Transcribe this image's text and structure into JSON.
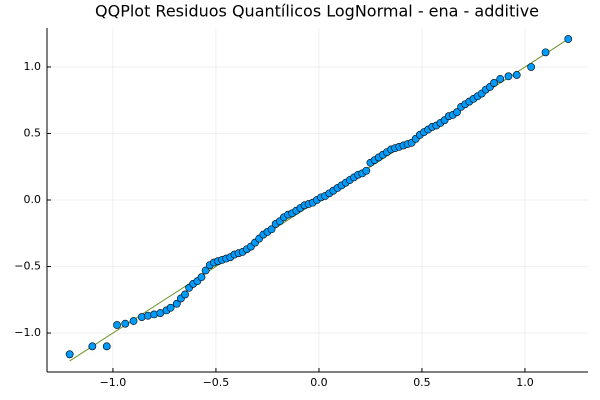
{
  "chart_data": {
    "type": "scatter",
    "title": "QQPlot Residuos Quantílicos LogNormal - ena - additive",
    "xlim": [
      -1.32,
      1.306
    ],
    "ylim": [
      -1.293,
      1.293
    ],
    "xticks": [
      {
        "value": -1.0,
        "label": "−1.0"
      },
      {
        "value": -0.5,
        "label": "−0.5"
      },
      {
        "value": 0.0,
        "label": "0.0"
      },
      {
        "value": 0.5,
        "label": "0.5"
      },
      {
        "value": 1.0,
        "label": "1.0"
      }
    ],
    "yticks": [
      {
        "value": -1.0,
        "label": "−1.0"
      },
      {
        "value": -0.5,
        "label": "−0.5"
      },
      {
        "value": 0.0,
        "label": "0.0"
      },
      {
        "value": 0.5,
        "label": "0.5"
      },
      {
        "value": 1.0,
        "label": "1.0"
      }
    ],
    "grid": true,
    "series": [
      {
        "type": "line",
        "color": "#6b8e23",
        "x": [
          -1.21,
          1.21
        ],
        "y": [
          -1.21,
          1.21
        ]
      },
      {
        "type": "scatter",
        "color": "#009af9",
        "x": [
          -1.21,
          -1.1,
          -1.03,
          -0.98,
          -0.94,
          -0.9,
          -0.86,
          -0.83,
          -0.8,
          -0.77,
          -0.74,
          -0.72,
          -0.69,
          -0.67,
          -0.65,
          -0.63,
          -0.61,
          -0.59,
          -0.57,
          -0.55,
          -0.53,
          -0.51,
          -0.49,
          -0.47,
          -0.45,
          -0.43,
          -0.41,
          -0.39,
          -0.37,
          -0.35,
          -0.33,
          -0.31,
          -0.29,
          -0.27,
          -0.25,
          -0.23,
          -0.21,
          -0.19,
          -0.17,
          -0.15,
          -0.13,
          -0.11,
          -0.09,
          -0.07,
          -0.05,
          -0.03,
          -0.01,
          0.01,
          0.03,
          0.05,
          0.07,
          0.09,
          0.11,
          0.13,
          0.15,
          0.17,
          0.19,
          0.21,
          0.23,
          0.25,
          0.27,
          0.29,
          0.31,
          0.33,
          0.35,
          0.37,
          0.39,
          0.41,
          0.43,
          0.45,
          0.47,
          0.49,
          0.51,
          0.53,
          0.55,
          0.57,
          0.59,
          0.61,
          0.63,
          0.65,
          0.67,
          0.69,
          0.71,
          0.73,
          0.75,
          0.77,
          0.79,
          0.81,
          0.83,
          0.85,
          0.88,
          0.92,
          0.96,
          1.03,
          1.1,
          1.21
        ],
        "y": [
          -1.16,
          -1.1,
          -1.1,
          -0.94,
          -0.93,
          -0.91,
          -0.88,
          -0.87,
          -0.86,
          -0.85,
          -0.83,
          -0.81,
          -0.78,
          -0.74,
          -0.71,
          -0.66,
          -0.63,
          -0.61,
          -0.58,
          -0.53,
          -0.49,
          -0.47,
          -0.46,
          -0.45,
          -0.44,
          -0.43,
          -0.41,
          -0.4,
          -0.39,
          -0.37,
          -0.35,
          -0.32,
          -0.29,
          -0.26,
          -0.24,
          -0.22,
          -0.18,
          -0.16,
          -0.13,
          -0.11,
          -0.1,
          -0.08,
          -0.06,
          -0.04,
          -0.03,
          -0.02,
          0.0,
          0.02,
          0.03,
          0.05,
          0.07,
          0.09,
          0.11,
          0.13,
          0.15,
          0.17,
          0.19,
          0.2,
          0.22,
          0.28,
          0.3,
          0.32,
          0.34,
          0.36,
          0.38,
          0.39,
          0.4,
          0.41,
          0.42,
          0.43,
          0.46,
          0.49,
          0.51,
          0.53,
          0.55,
          0.56,
          0.58,
          0.6,
          0.63,
          0.64,
          0.66,
          0.7,
          0.72,
          0.74,
          0.76,
          0.78,
          0.8,
          0.83,
          0.85,
          0.88,
          0.91,
          0.93,
          0.94,
          1.0,
          1.11,
          1.21
        ]
      }
    ]
  }
}
